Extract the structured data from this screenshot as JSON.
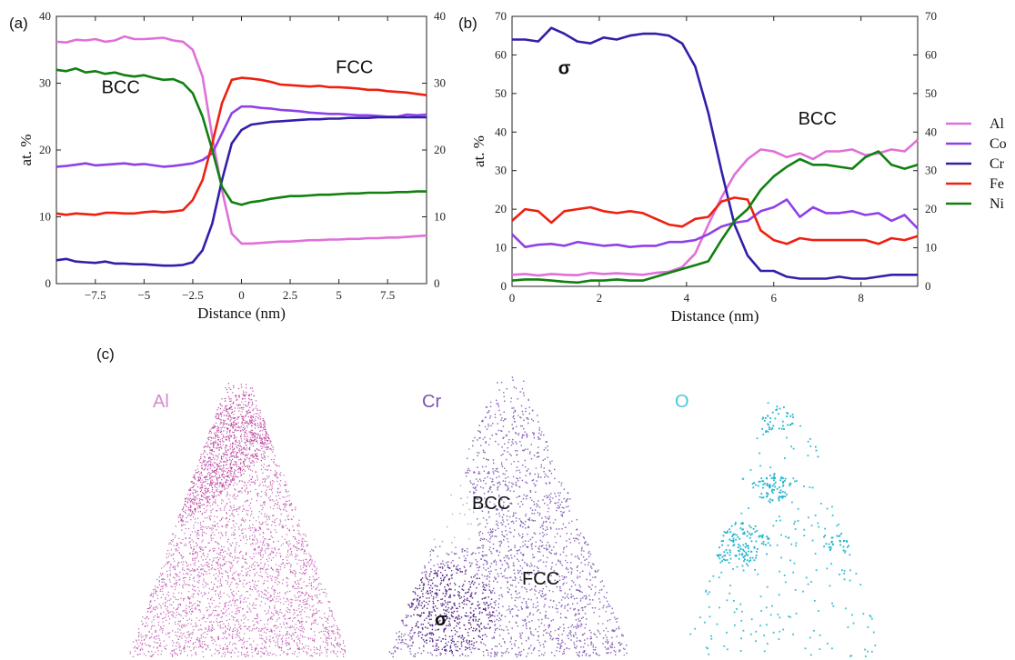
{
  "colors": {
    "Al": "#e070d8",
    "Co": "#9040e8",
    "Cr": "#3020a8",
    "Fe": "#ee2010",
    "Ni": "#108010",
    "O": "#20b8d0"
  },
  "chart_data": [
    {
      "panel": "(a)",
      "type": "line",
      "xlabel": "Distance (nm)",
      "ylabel": "at. %",
      "xlim": [
        -9.5,
        9.5
      ],
      "ylim": [
        0,
        40
      ],
      "xticks": [
        -7.5,
        -5,
        -2.5,
        0,
        2.5,
        5,
        7.5
      ],
      "xtick_labels": [
        "−7.5",
        "−5",
        "−2.5",
        "0",
        "2.5",
        "5",
        "7.5"
      ],
      "yticks": [
        0,
        10,
        20,
        30,
        40
      ],
      "annotations": [
        {
          "text": "BCC",
          "x": -6.2,
          "y": 28.5
        },
        {
          "text": "FCC",
          "x": 5.8,
          "y": 31.5
        }
      ],
      "x": [
        -9.5,
        -9,
        -8.5,
        -8,
        -7.5,
        -7,
        -6.5,
        -6,
        -5.5,
        -5,
        -4.5,
        -4,
        -3.5,
        -3,
        -2.5,
        -2,
        -1.5,
        -1,
        -0.5,
        0,
        0.5,
        1,
        1.5,
        2,
        2.5,
        3,
        3.5,
        4,
        4.5,
        5,
        5.5,
        6,
        6.5,
        7,
        7.5,
        8,
        8.5,
        9,
        9.5
      ],
      "series": [
        {
          "name": "Al",
          "values": [
            36.2,
            36.1,
            36.5,
            36.4,
            36.6,
            36.2,
            36.4,
            37.0,
            36.6,
            36.6,
            36.7,
            36.8,
            36.4,
            36.2,
            35.0,
            31.0,
            22.0,
            14.0,
            7.5,
            6.0,
            6.0,
            6.1,
            6.2,
            6.3,
            6.3,
            6.4,
            6.5,
            6.5,
            6.6,
            6.6,
            6.7,
            6.7,
            6.8,
            6.8,
            6.9,
            6.9,
            7.0,
            7.1,
            7.2
          ]
        },
        {
          "name": "Co",
          "values": [
            17.5,
            17.6,
            17.8,
            18.0,
            17.7,
            17.8,
            17.9,
            18.0,
            17.8,
            17.9,
            17.7,
            17.5,
            17.6,
            17.8,
            18.0,
            18.5,
            19.5,
            22.5,
            25.5,
            26.5,
            26.5,
            26.3,
            26.2,
            26.0,
            25.9,
            25.8,
            25.6,
            25.5,
            25.4,
            25.4,
            25.3,
            25.2,
            25.2,
            25.1,
            25.0,
            25.0,
            25.3,
            25.2,
            25.3
          ]
        },
        {
          "name": "Cr",
          "values": [
            3.5,
            3.7,
            3.3,
            3.2,
            3.1,
            3.3,
            3.0,
            3.0,
            2.9,
            2.9,
            2.8,
            2.7,
            2.7,
            2.8,
            3.2,
            5.0,
            9.0,
            15.5,
            21.0,
            23.0,
            23.8,
            24.0,
            24.2,
            24.3,
            24.4,
            24.5,
            24.6,
            24.6,
            24.7,
            24.7,
            24.8,
            24.8,
            24.8,
            24.9,
            24.9,
            24.9,
            24.9,
            24.9,
            24.9
          ]
        },
        {
          "name": "Fe",
          "values": [
            10.5,
            10.3,
            10.5,
            10.4,
            10.3,
            10.6,
            10.6,
            10.5,
            10.5,
            10.7,
            10.8,
            10.7,
            10.8,
            11.0,
            12.5,
            15.5,
            21.0,
            27.0,
            30.5,
            30.8,
            30.7,
            30.5,
            30.2,
            29.8,
            29.7,
            29.6,
            29.5,
            29.6,
            29.4,
            29.4,
            29.3,
            29.2,
            29.0,
            29.0,
            28.8,
            28.7,
            28.6,
            28.4,
            28.2
          ]
        },
        {
          "name": "Ni",
          "values": [
            32.0,
            31.8,
            32.2,
            31.6,
            31.8,
            31.4,
            31.6,
            31.2,
            31.0,
            31.2,
            30.8,
            30.5,
            30.6,
            30.0,
            28.5,
            25.0,
            20.0,
            14.5,
            12.2,
            11.8,
            12.2,
            12.4,
            12.7,
            12.9,
            13.1,
            13.1,
            13.2,
            13.3,
            13.3,
            13.4,
            13.5,
            13.5,
            13.6,
            13.6,
            13.6,
            13.7,
            13.7,
            13.8,
            13.8
          ]
        }
      ]
    },
    {
      "panel": "(b)",
      "type": "line",
      "xlabel": "Distance (nm)",
      "ylabel": "at. %",
      "xlim": [
        0,
        9.3
      ],
      "ylim": [
        0,
        70
      ],
      "xticks": [
        0,
        2,
        4,
        6,
        8
      ],
      "xtick_labels": [
        "0",
        "2",
        "4",
        "6",
        "8"
      ],
      "yticks": [
        0,
        10,
        20,
        30,
        40,
        50,
        60,
        70
      ],
      "annotations": [
        {
          "text": "σ",
          "x": 1.2,
          "y": 55
        },
        {
          "text": "BCC",
          "x": 7.0,
          "y": 42
        }
      ],
      "x": [
        0,
        0.3,
        0.6,
        0.9,
        1.2,
        1.5,
        1.8,
        2.1,
        2.4,
        2.7,
        3.0,
        3.3,
        3.6,
        3.9,
        4.2,
        4.5,
        4.8,
        5.1,
        5.4,
        5.7,
        6.0,
        6.3,
        6.6,
        6.9,
        7.2,
        7.5,
        7.8,
        8.1,
        8.4,
        8.7,
        9.0,
        9.3
      ],
      "series": [
        {
          "name": "Al",
          "values": [
            3.0,
            3.2,
            2.8,
            3.2,
            3.0,
            2.9,
            3.5,
            3.2,
            3.4,
            3.2,
            3.0,
            3.5,
            3.8,
            5.0,
            8.5,
            16.0,
            23.0,
            29.0,
            33.0,
            35.5,
            35.0,
            33.5,
            34.5,
            33.0,
            35.0,
            35.0,
            35.5,
            34.0,
            34.5,
            35.5,
            35.0,
            38.0
          ]
        },
        {
          "name": "Co",
          "values": [
            13.5,
            10.2,
            10.8,
            11.0,
            10.5,
            11.5,
            11.0,
            10.5,
            10.8,
            10.2,
            10.5,
            10.5,
            11.5,
            11.5,
            12.0,
            13.5,
            15.5,
            16.5,
            17.0,
            19.5,
            20.5,
            22.5,
            18.0,
            20.5,
            19.0,
            19.0,
            19.5,
            18.5,
            19.0,
            17.0,
            18.5,
            15.0
          ]
        },
        {
          "name": "Cr",
          "values": [
            64.0,
            64.0,
            63.5,
            67.0,
            65.5,
            63.5,
            63.0,
            64.5,
            64.0,
            65.0,
            65.5,
            65.5,
            65.0,
            63.0,
            57.0,
            45.0,
            30.0,
            16.0,
            8.0,
            4.0,
            4.0,
            2.5,
            2.0,
            2.0,
            2.0,
            2.5,
            2.0,
            2.0,
            2.5,
            3.0,
            3.0,
            3.0
          ]
        },
        {
          "name": "Fe",
          "values": [
            17.0,
            20.0,
            19.5,
            16.5,
            19.5,
            20.0,
            20.5,
            19.5,
            19.0,
            19.5,
            19.0,
            17.5,
            16.0,
            15.5,
            17.5,
            18.0,
            22.0,
            23.0,
            22.5,
            14.5,
            12.0,
            11.0,
            12.5,
            12.0,
            12.0,
            12.0,
            12.0,
            12.0,
            11.0,
            12.5,
            12.0,
            13.0
          ]
        },
        {
          "name": "Ni",
          "values": [
            1.5,
            1.8,
            1.8,
            1.5,
            1.2,
            1.0,
            1.5,
            1.5,
            1.8,
            1.5,
            1.5,
            2.5,
            3.5,
            4.5,
            5.5,
            6.5,
            12.0,
            17.0,
            20.0,
            25.0,
            28.5,
            31.0,
            33.0,
            31.5,
            31.5,
            31.0,
            30.5,
            33.5,
            35.0,
            31.5,
            30.5,
            31.5
          ]
        }
      ]
    }
  ],
  "panel_labels": {
    "a": "(a)",
    "b": "(b)",
    "c": "(c)"
  },
  "legend": [
    "Al",
    "Co",
    "Cr",
    "Fe",
    "Ni"
  ],
  "maps": {
    "al_title": "Al",
    "cr_title": "Cr",
    "o_title": "O",
    "cr_labels": {
      "bcc": "BCC",
      "fcc": "FCC",
      "sigma": "σ"
    }
  }
}
